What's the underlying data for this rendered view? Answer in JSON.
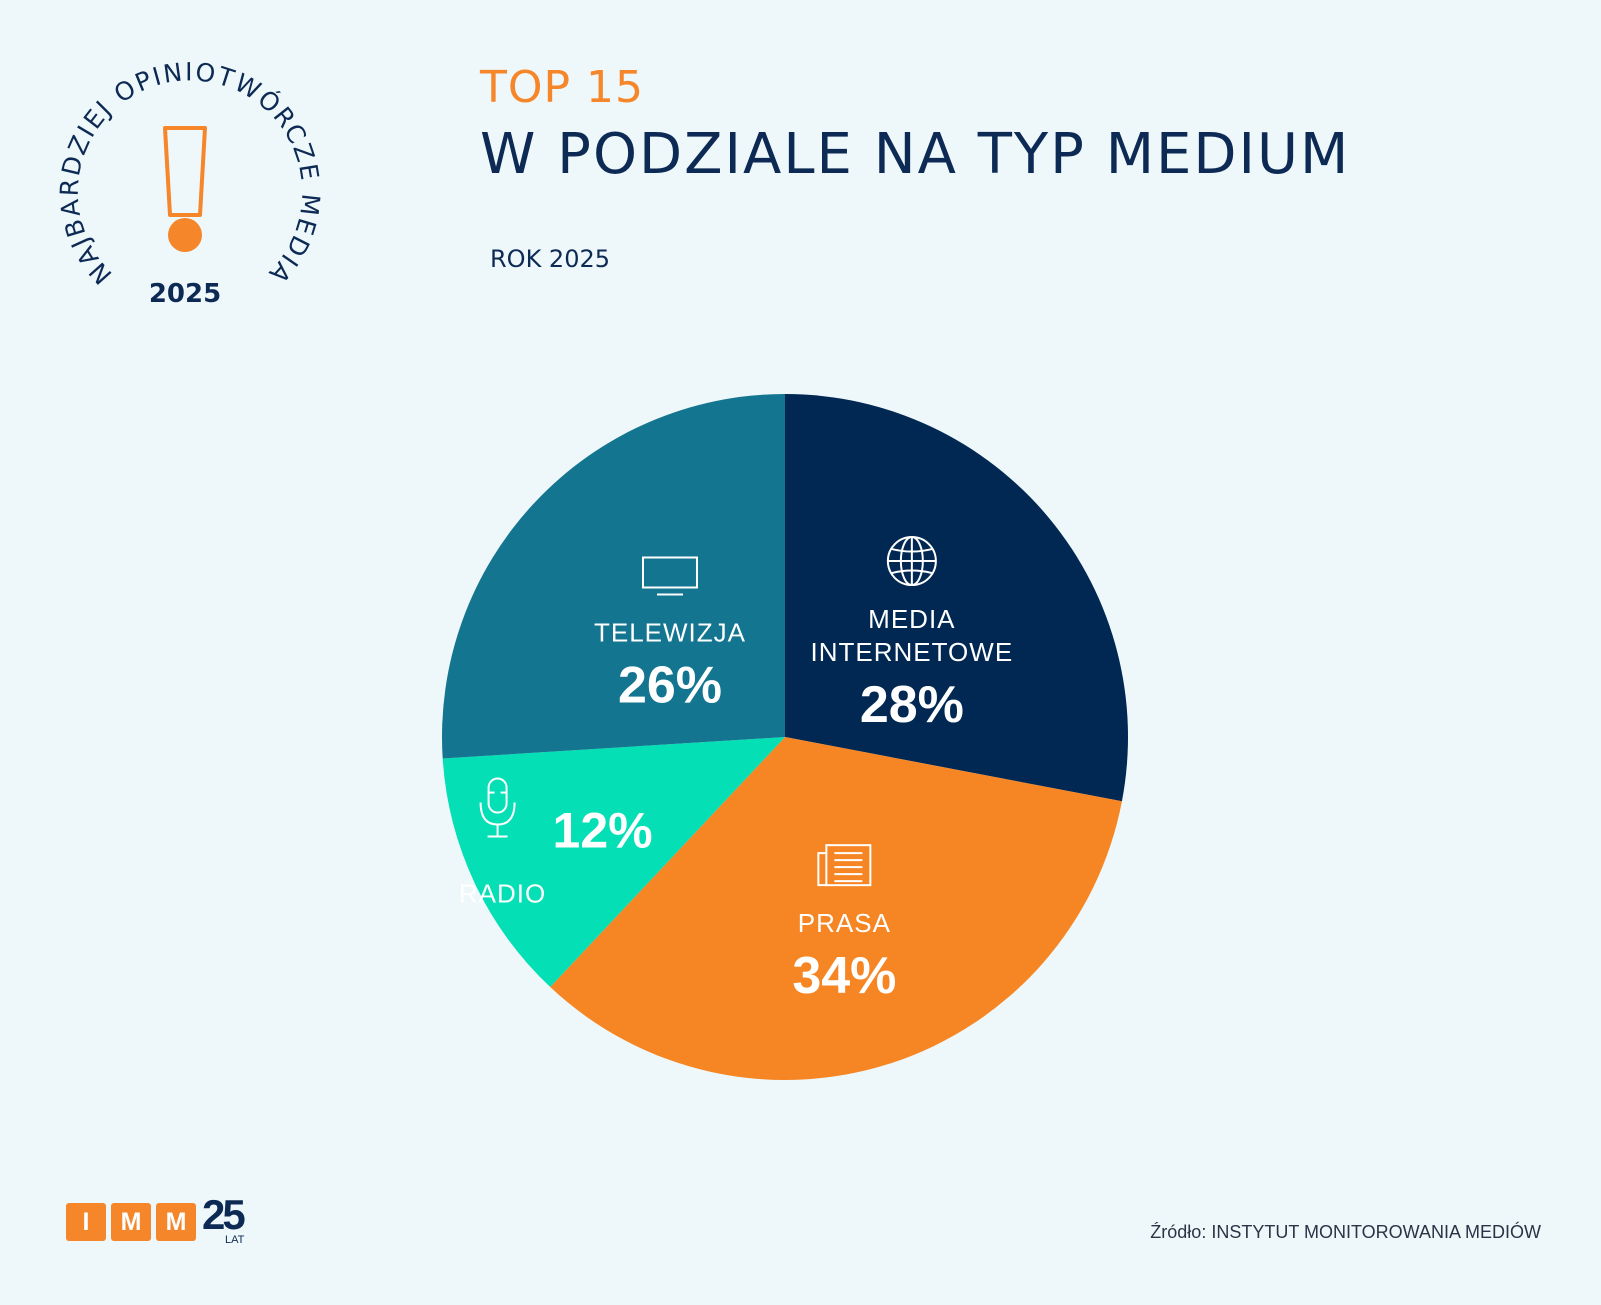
{
  "badge": {
    "arc_text": "NAJBARDZIEJ OPINIOTWÓRCZE MEDIA",
    "year": "2025"
  },
  "header": {
    "title_top": "TOP 15",
    "title_main": "W PODZIALE NA TYP MEDIUM",
    "subtitle": "ROK 2025"
  },
  "chart_data": {
    "type": "pie",
    "slices": [
      {
        "label": "MEDIA INTERNETOWE",
        "value": 28,
        "value_label": "28%",
        "color": "#012853",
        "icon": "globe-icon"
      },
      {
        "label": "PRASA",
        "value": 34,
        "value_label": "34%",
        "color": "#f68523",
        "icon": "newspaper-icon"
      },
      {
        "label": "RADIO",
        "value": 12,
        "value_label": "12%",
        "color": "#04dfb6",
        "icon": "microphone-icon"
      },
      {
        "label": "TELEWIZJA",
        "value": 26,
        "value_label": "26%",
        "color": "#137590",
        "icon": "tv-icon"
      }
    ],
    "start": "12 o'clock",
    "direction": "clockwise"
  },
  "footer": {
    "source": "Źródło: INSTYTUT MONITOROWANIA MEDIÓW",
    "logo_letters": [
      "I",
      "M",
      "M"
    ],
    "logo_number": "25",
    "logo_suffix": "LAT"
  },
  "colors": {
    "navy": "#0d2a55",
    "orange": "#f5862a",
    "background": "#eef8fa"
  }
}
